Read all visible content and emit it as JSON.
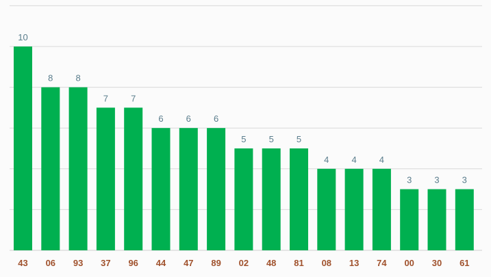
{
  "chart_data": {
    "type": "bar",
    "categories": [
      "43",
      "06",
      "93",
      "37",
      "96",
      "44",
      "47",
      "89",
      "02",
      "48",
      "81",
      "08",
      "13",
      "74",
      "00",
      "30",
      "61"
    ],
    "values": [
      10,
      8,
      8,
      7,
      7,
      6,
      6,
      6,
      5,
      5,
      5,
      4,
      4,
      4,
      3,
      3,
      3
    ],
    "value_labels": [
      "10",
      "8",
      "8",
      "7",
      "7",
      "6",
      "6",
      "6",
      "5",
      "5",
      "5",
      "4",
      "4",
      "4",
      "3",
      "3",
      "3"
    ],
    "ylim": [
      0,
      12
    ],
    "grid": true,
    "legend": "none",
    "colors": {
      "bar": "#00b050",
      "value_label": "#5a7d8c",
      "category_label": "#a0522d",
      "grid": "#d9d9d9"
    }
  }
}
